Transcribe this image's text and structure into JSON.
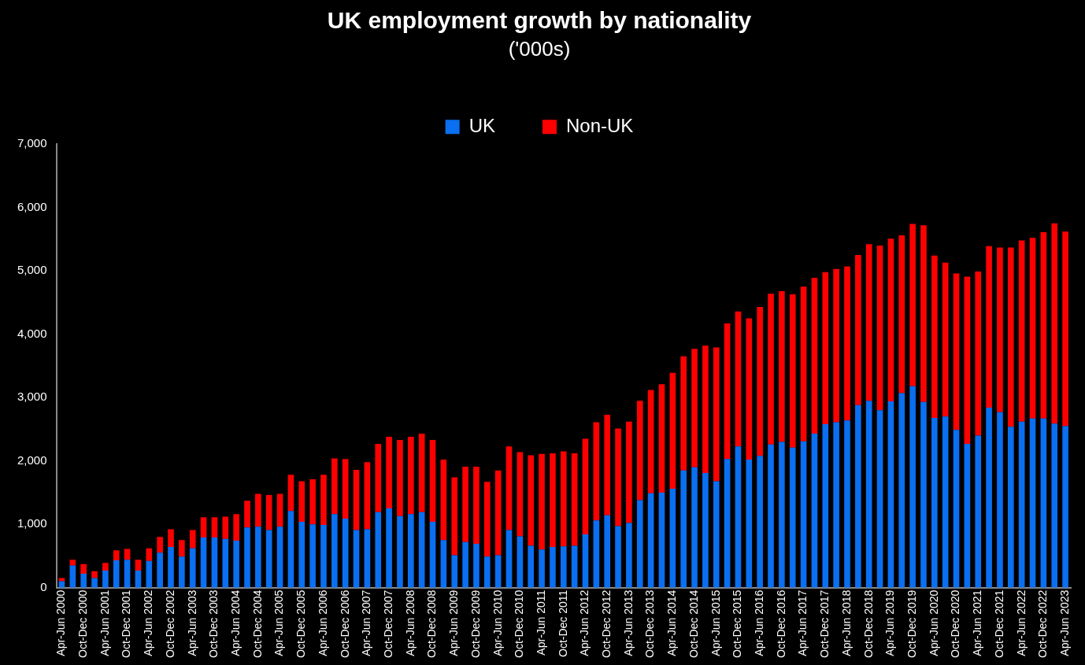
{
  "chart_data": {
    "type": "bar",
    "title": "UK employment growth by nationality",
    "subtitle": "('000s)",
    "stacked": true,
    "legend": "top",
    "grid": false,
    "categories": [
      "Apr-Jun 2000",
      null,
      "Oct-Dec 2000",
      null,
      "Apr-Jun 2001",
      null,
      "Oct-Dec 2001",
      null,
      "Apr-Jun 2002",
      null,
      "Oct-Dec 2002",
      null,
      "Apr-Jun 2003",
      null,
      "Oct-Dec 2003",
      null,
      "Apr-Jun 2004",
      null,
      "Oct-Dec 2004",
      null,
      "Apr-Jun 2005",
      null,
      "Oct-Dec 2005",
      null,
      "Apr-Jun 2006",
      null,
      "Oct-Dec 2006",
      null,
      "Apr-Jun 2007",
      null,
      "Oct-Dec 2007",
      null,
      "Apr-Jun 2008",
      null,
      "Oct-Dec 2008",
      null,
      "Apr-Jun 2009",
      null,
      "Oct-Dec 2009",
      null,
      "Apr-Jun 2010",
      null,
      "Oct-Dec 2010",
      null,
      "Apr-Jun 2011",
      null,
      "Oct-Dec 2011",
      null,
      "Apr-Jun 2012",
      null,
      "Oct-Dec 2012",
      null,
      "Apr-Jun 2013",
      null,
      "Oct-Dec 2013",
      null,
      "Apr-Jun 2014",
      null,
      "Oct-Dec 2014",
      null,
      "Apr-Jun 2015",
      null,
      "Oct-Dec 2015",
      null,
      "Apr-Jun 2016",
      null,
      "Oct-Dec 2016",
      null,
      "Apr-Jun 2017",
      null,
      "Oct-Dec 2017",
      null,
      "Apr-Jun 2018",
      null,
      "Oct-Dec 2018",
      null,
      "Apr-Jun 2019",
      null,
      "Oct-Dec 2019",
      null,
      "Apr-Jun 2020",
      null,
      "Oct-Dec 2020",
      null,
      "Apr-Jun 2021",
      null,
      "Oct-Dec 2021",
      null,
      "Apr-Jun 2022",
      null,
      "Oct-Dec 2022",
      null,
      "Apr-Jun 2023"
    ],
    "ylim": [
      0,
      7000
    ],
    "yticks": [
      {
        "value": 0,
        "label": "0"
      },
      {
        "value": 1000,
        "label": "1,000"
      },
      {
        "value": 2000,
        "label": "2,000"
      },
      {
        "value": 3000,
        "label": "3,000"
      },
      {
        "value": 4000,
        "label": "4,000"
      },
      {
        "value": 5000,
        "label": "5,000"
      },
      {
        "value": 6000,
        "label": "6,000"
      },
      {
        "value": 7000,
        "label": "7,000"
      }
    ],
    "series": [
      {
        "name": "UK",
        "color": "#0a6ff0",
        "values": [
          100,
          350,
          220,
          150,
          270,
          430,
          440,
          270,
          420,
          550,
          640,
          490,
          620,
          790,
          790,
          770,
          740,
          950,
          960,
          910,
          960,
          1210,
          1040,
          1000,
          990,
          1160,
          1090,
          910,
          920,
          1190,
          1250,
          1130,
          1160,
          1190,
          1040,
          750,
          510,
          720,
          690,
          490,
          510,
          910,
          810,
          660,
          600,
          640,
          650,
          660,
          840,
          1060,
          1140,
          970,
          1020,
          1380,
          1490,
          1500,
          1560,
          1850,
          1900,
          1810,
          1680,
          2030,
          2230,
          2020,
          2080,
          2260,
          2300,
          2210,
          2310,
          2430,
          2580,
          2610,
          2640,
          2880,
          2950,
          2800,
          2940,
          3070,
          3180,
          2930,
          2680,
          2700,
          2490,
          2270,
          2400,
          2840,
          2770,
          2540,
          2620,
          2670,
          2670,
          2590,
          2550
        ]
      },
      {
        "name": "Non-UK",
        "color": "#ff0000",
        "values": [
          50,
          90,
          150,
          110,
          120,
          160,
          170,
          170,
          200,
          250,
          280,
          260,
          290,
          320,
          320,
          350,
          420,
          420,
          520,
          550,
          520,
          570,
          640,
          710,
          790,
          880,
          940,
          950,
          1060,
          1080,
          1130,
          1200,
          1220,
          1240,
          1290,
          1270,
          1230,
          1190,
          1220,
          1180,
          1340,
          1320,
          1330,
          1430,
          1510,
          1480,
          1500,
          1460,
          1510,
          1550,
          1590,
          1540,
          1600,
          1570,
          1630,
          1710,
          1830,
          1800,
          1870,
          2010,
          2110,
          2140,
          2130,
          2230,
          2350,
          2380,
          2380,
          2420,
          2440,
          2460,
          2400,
          2420,
          2430,
          2370,
          2470,
          2600,
          2570,
          2490,
          2560,
          2790,
          2560,
          2430,
          2470,
          2640,
          2590,
          2550,
          2600,
          2830,
          2860,
          2850,
          2940,
          3160,
          3070
        ]
      }
    ]
  }
}
